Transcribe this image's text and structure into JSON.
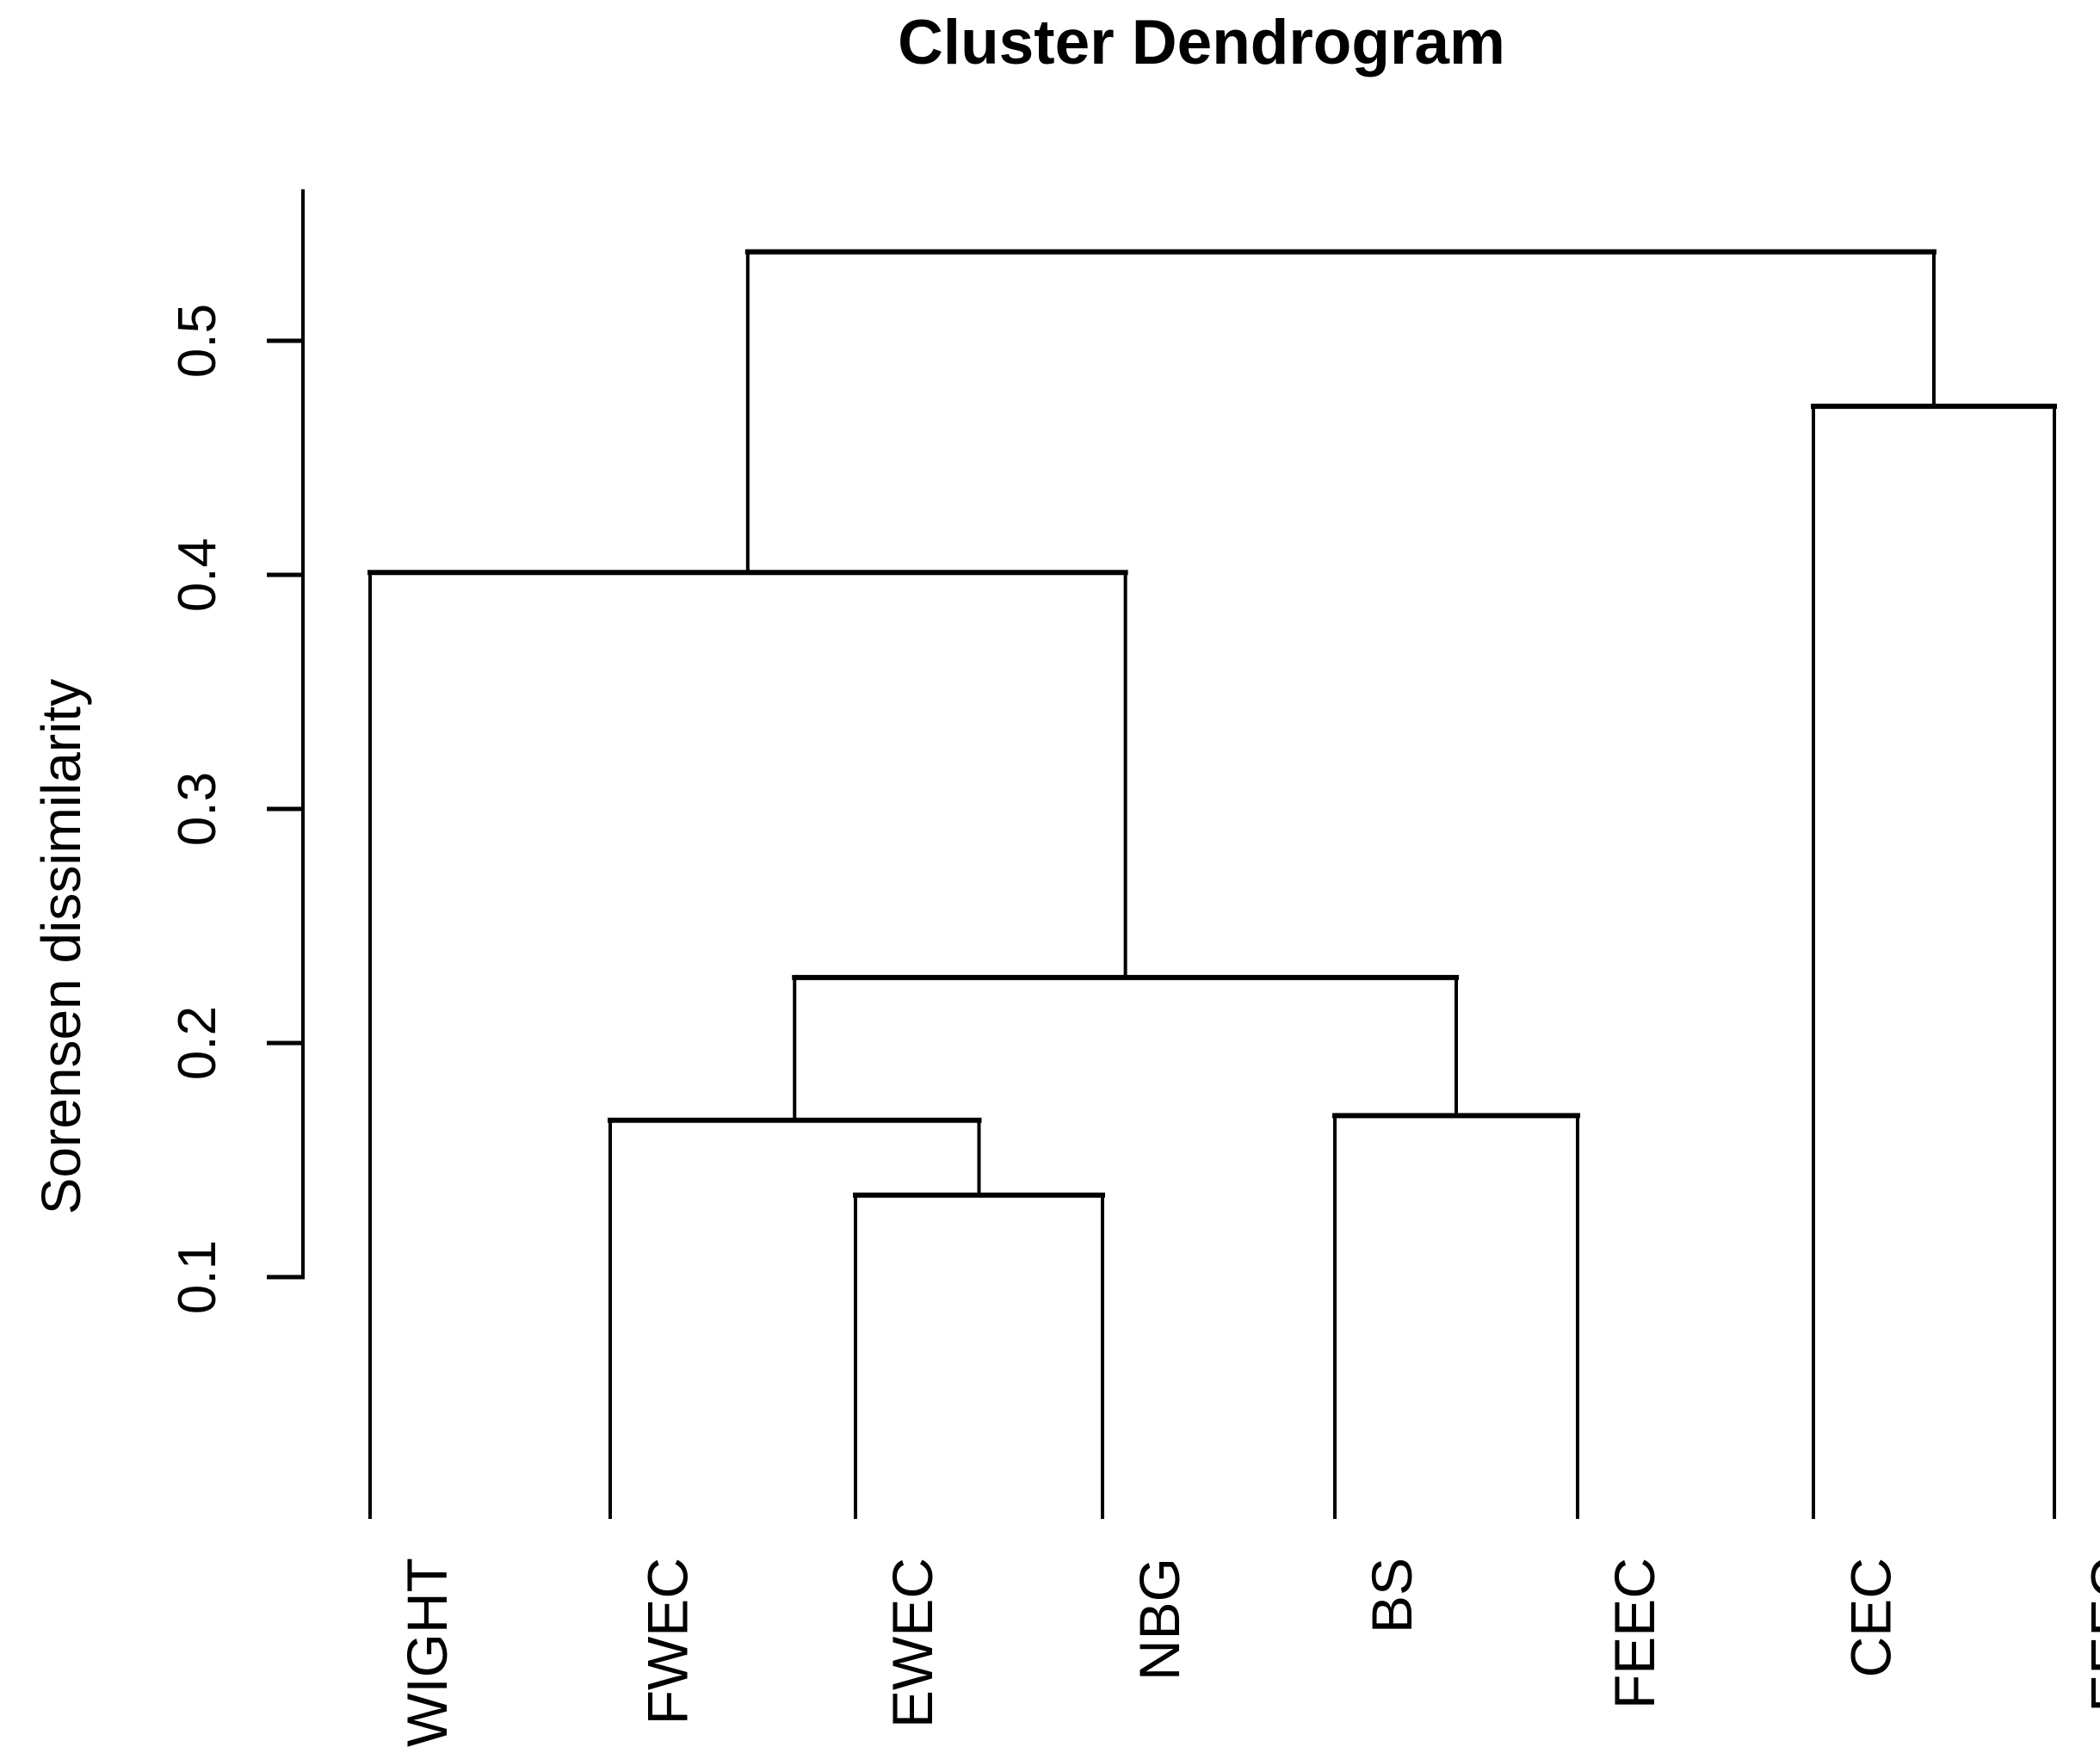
{
  "chart_data": {
    "type": "dendrogram",
    "title": "Cluster Dendrogram",
    "ylabel": "Sorensen dissimilarity",
    "xlabel": "",
    "yticks": [
      "0.1",
      "0.2",
      "0.3",
      "0.4",
      "0.5"
    ],
    "ylim": [
      0,
      0.565
    ],
    "grid": false,
    "legend": null,
    "leaves": [
      "WIGHT",
      "FWEC",
      "EWEC",
      "NBG",
      "BS",
      "FEEC",
      "CEC",
      "EEEC"
    ],
    "merges": [
      {
        "id": "m1",
        "a": "EWEC",
        "b": "NBG",
        "height": 0.135
      },
      {
        "id": "m2",
        "a": "FWEC",
        "b": "m1",
        "height": 0.167
      },
      {
        "id": "m3",
        "a": "BS",
        "b": "FEEC",
        "height": 0.169
      },
      {
        "id": "m4",
        "a": "m2",
        "b": "m3",
        "height": 0.228
      },
      {
        "id": "m5",
        "a": "WIGHT",
        "b": "m4",
        "height": 0.401
      },
      {
        "id": "m6",
        "a": "CEC",
        "b": "EEEC",
        "height": 0.472
      },
      {
        "id": "m7",
        "a": "m5",
        "b": "m6",
        "height": 0.538
      }
    ]
  },
  "colors": {
    "line": "#000000",
    "text": "#000000",
    "background": "#ffffff"
  }
}
